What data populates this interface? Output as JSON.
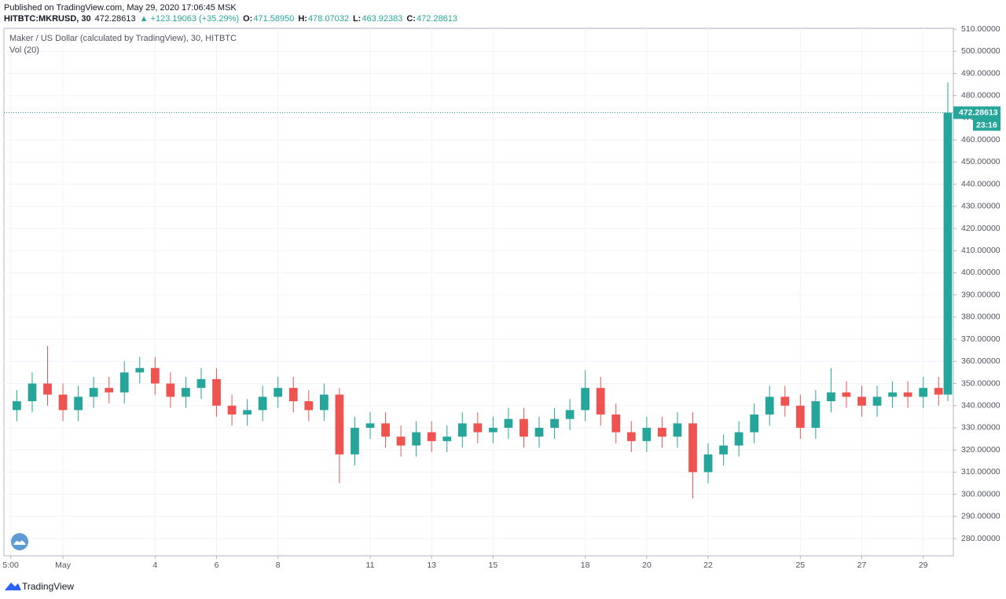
{
  "header": {
    "published": "Published on TradingView.com, May 29, 2020 17:06:45 MSK",
    "symbol": "HITBTC:MKRUSD, 30",
    "last": "472.28613",
    "change": "▲ +123.19063 (+35.29%)",
    "ohlc": [
      {
        "label": "O:",
        "value": "471.58950"
      },
      {
        "label": "H:",
        "value": "478.07032"
      },
      {
        "label": "L:",
        "value": "463.92383"
      },
      {
        "label": "C:",
        "value": "472.28613"
      }
    ]
  },
  "chart_data": {
    "type": "candlestick",
    "title": "Maker / US Dollar (calculated by TradingView), 30, HITBTC",
    "indicator": "Vol (20)",
    "last_price_label": "472.28613",
    "countdown": "23:16",
    "up_color": "#26a69a",
    "down_color": "#ef5350",
    "grid": true,
    "x": [
      -0.5,
      0,
      0.5,
      1,
      1.5,
      2,
      2.5,
      3,
      3.5,
      4,
      4.5,
      5,
      5.5,
      6,
      6.5,
      7,
      7.5,
      8,
      8.5,
      9,
      9.5,
      10,
      10.5,
      11,
      11.5,
      12,
      12.5,
      13,
      13.5,
      14,
      14.5,
      15,
      15.5,
      16,
      16.5,
      17,
      17.5,
      18,
      18.5,
      19,
      19.5,
      20,
      20.5,
      21,
      21.5,
      22,
      22.5,
      23,
      23.5,
      24,
      24.5,
      25,
      25.5,
      26,
      26.5,
      27,
      27.5,
      28,
      28.5,
      29,
      29.5,
      29.8
    ],
    "open": [
      338,
      342,
      350,
      345,
      338,
      344,
      348,
      346,
      355,
      357,
      350,
      344,
      348,
      352,
      340,
      336,
      338,
      344,
      348,
      342,
      338,
      345,
      318,
      330,
      332,
      326,
      322,
      328,
      324,
      326,
      332,
      328,
      330,
      334,
      326,
      330,
      334,
      338,
      348,
      336,
      328,
      324,
      330,
      326,
      332,
      310,
      318,
      322,
      328,
      336,
      344,
      340,
      330,
      342,
      346,
      344,
      340,
      344,
      346,
      344,
      348,
      345
    ],
    "high": [
      347,
      355,
      367,
      350,
      349,
      353,
      353,
      360,
      362,
      362,
      355,
      353,
      357,
      357,
      345,
      343,
      349,
      353,
      353,
      347,
      350,
      348,
      335,
      337,
      337,
      331,
      333,
      333,
      331,
      337,
      337,
      335,
      339,
      339,
      335,
      339,
      343,
      356,
      353,
      341,
      333,
      335,
      335,
      337,
      337,
      323,
      327,
      333,
      341,
      349,
      349,
      345,
      347,
      357,
      351,
      349,
      349,
      351,
      351,
      353,
      353,
      486
    ],
    "low": [
      333,
      337,
      340,
      333,
      333,
      339,
      341,
      341,
      350,
      345,
      339,
      339,
      343,
      335,
      331,
      331,
      333,
      339,
      337,
      333,
      333,
      305,
      313,
      325,
      321,
      317,
      317,
      319,
      319,
      321,
      323,
      323,
      325,
      321,
      321,
      325,
      329,
      333,
      331,
      323,
      319,
      319,
      321,
      321,
      298,
      305,
      313,
      317,
      323,
      331,
      335,
      325,
      325,
      337,
      339,
      335,
      335,
      339,
      339,
      339,
      340,
      342
    ],
    "close": [
      342,
      350,
      345,
      338,
      344,
      348,
      346,
      355,
      357,
      350,
      344,
      348,
      352,
      340,
      336,
      338,
      344,
      348,
      342,
      338,
      345,
      318,
      330,
      332,
      326,
      322,
      328,
      324,
      326,
      332,
      328,
      330,
      334,
      326,
      330,
      334,
      338,
      348,
      336,
      328,
      324,
      330,
      326,
      332,
      310,
      318,
      322,
      328,
      336,
      344,
      340,
      330,
      342,
      346,
      344,
      340,
      344,
      346,
      344,
      348,
      345,
      472.28613
    ],
    "xlim": [
      -0.92,
      29.98
    ],
    "xticks": [
      {
        "value": -0.7,
        "label": "5:00"
      },
      {
        "value": 1,
        "label": "May"
      },
      4,
      6,
      8,
      11,
      13,
      15,
      18,
      20,
      22,
      25,
      27,
      29
    ],
    "ylim": [
      272.2,
      510.4
    ],
    "yticks": [
      {
        "value": 280,
        "label": "280.00000"
      },
      {
        "value": 290,
        "label": "290.00000"
      },
      {
        "value": 300,
        "label": "300.00000"
      },
      {
        "value": 310,
        "label": "310.00000"
      },
      {
        "value": 320,
        "label": "320.00000"
      },
      {
        "value": 330,
        "label": "330.00000"
      },
      {
        "value": 340,
        "label": "340.00000"
      },
      {
        "value": 350,
        "label": "350.00000"
      },
      {
        "value": 360,
        "label": "360.00000"
      },
      {
        "value": 370,
        "label": "370.00000"
      },
      {
        "value": 380,
        "label": "380.00000"
      },
      {
        "value": 390,
        "label": "390.00000"
      },
      {
        "value": 400,
        "label": "400.00000"
      },
      {
        "value": 410,
        "label": "410.00000"
      },
      {
        "value": 420,
        "label": "420.00000"
      },
      {
        "value": 430,
        "label": "430.00000"
      },
      {
        "value": 440,
        "label": "440.00000"
      },
      {
        "value": 450,
        "label": "450.00000"
      },
      {
        "value": 460,
        "label": "460.00000"
      },
      {
        "value": 470,
        "label": "470.00000"
      },
      {
        "value": 480,
        "label": "480.00000"
      },
      {
        "value": 490,
        "label": "490.00000"
      },
      {
        "value": 500,
        "label": "500.00000"
      },
      {
        "value": 510,
        "label": "510.00000"
      }
    ]
  },
  "footer": {
    "brand": "TradingView"
  }
}
